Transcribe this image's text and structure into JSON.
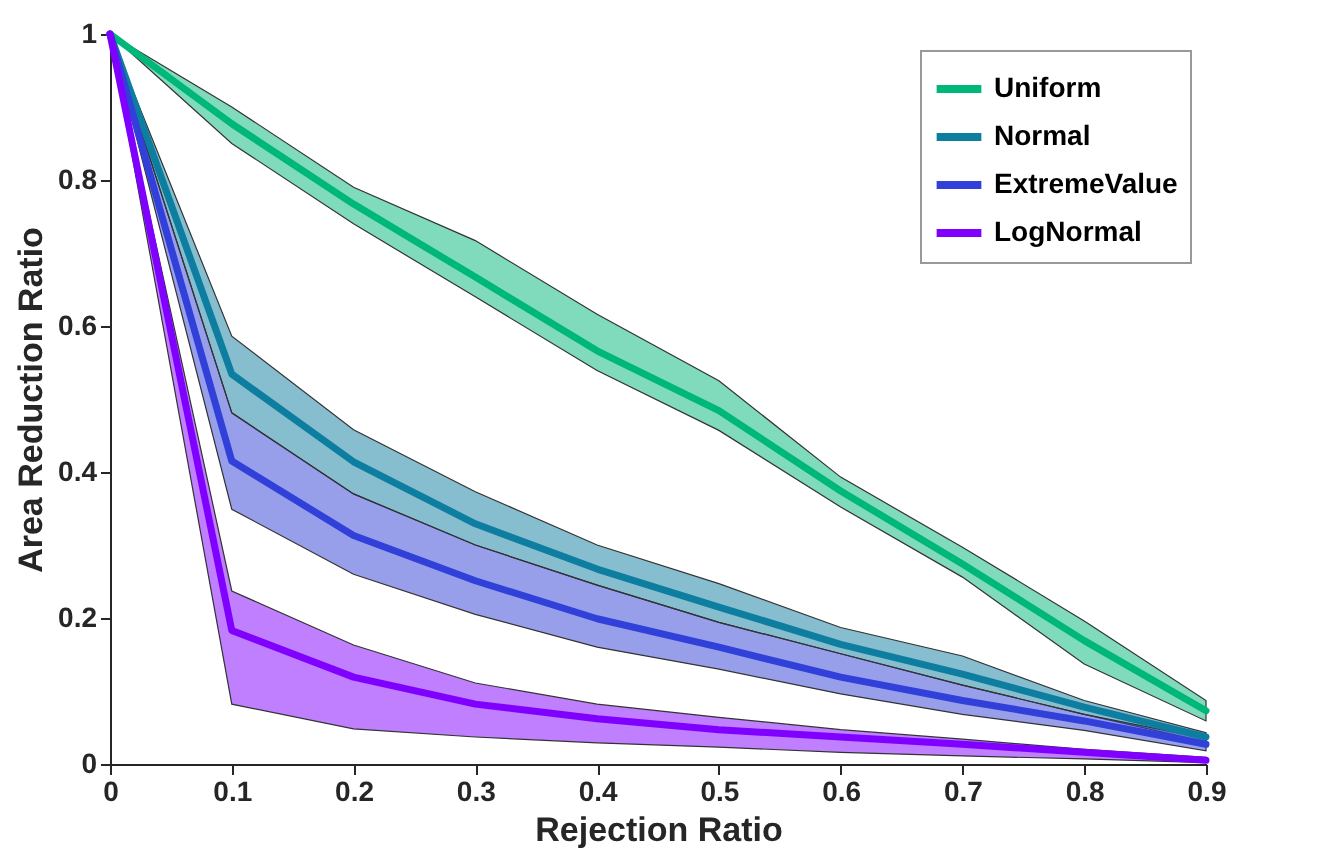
{
  "chart_data": {
    "type": "line",
    "xlabel": "Rejection Ratio",
    "ylabel": "Area Reduction Ratio",
    "x": [
      0,
      0.1,
      0.2,
      0.3,
      0.4,
      0.5,
      0.6,
      0.7,
      0.8,
      0.9
    ],
    "xlim": [
      0,
      0.9
    ],
    "xticks": [
      0,
      0.1,
      0.2,
      0.3,
      0.4,
      0.5,
      0.6,
      0.7,
      0.8,
      0.9
    ],
    "ylim": [
      0,
      1
    ],
    "yticks": [
      0,
      0.2,
      0.4,
      0.6,
      0.8,
      1
    ],
    "grid": false,
    "legend": "top right",
    "line_style": "solid",
    "marker": "none",
    "series": [
      {
        "name": "Uniform",
        "color": "#00b77a",
        "values": [
          1,
          0.877,
          0.767,
          0.667,
          0.566,
          0.484,
          0.374,
          0.274,
          0.169,
          0.073
        ],
        "lower": [
          1,
          0.85,
          0.74,
          0.64,
          0.539,
          0.457,
          0.352,
          0.256,
          0.137,
          0.059
        ],
        "upper": [
          1,
          0.9,
          0.79,
          0.717,
          0.616,
          0.525,
          0.393,
          0.297,
          0.196,
          0.087
        ]
      },
      {
        "name": "Normal",
        "color": "#0e7ea0",
        "values": [
          1,
          0.534,
          0.414,
          0.329,
          0.267,
          0.215,
          0.164,
          0.123,
          0.078,
          0.037
        ],
        "lower": [
          1,
          0.481,
          0.37,
          0.3,
          0.245,
          0.194,
          0.151,
          0.108,
          0.068,
          0.03
        ],
        "upper": [
          1,
          0.586,
          0.458,
          0.373,
          0.3,
          0.247,
          0.187,
          0.148,
          0.087,
          0.043
        ]
      },
      {
        "name": "ExtremeValue",
        "color": "#3040d8",
        "values": [
          1,
          0.415,
          0.313,
          0.251,
          0.199,
          0.16,
          0.119,
          0.087,
          0.059,
          0.027
        ],
        "lower": [
          1,
          0.349,
          0.26,
          0.205,
          0.16,
          0.13,
          0.096,
          0.068,
          0.046,
          0.018
        ],
        "upper": [
          1,
          0.481,
          0.37,
          0.3,
          0.245,
          0.194,
          0.151,
          0.108,
          0.068,
          0.035
        ]
      },
      {
        "name": "LogNormal",
        "color": "#7f00ff",
        "values": [
          1,
          0.183,
          0.119,
          0.082,
          0.062,
          0.047,
          0.037,
          0.027,
          0.016,
          0.005
        ],
        "lower": [
          1,
          0.082,
          0.048,
          0.037,
          0.029,
          0.023,
          0.016,
          0.011,
          0.007,
          0.002
        ],
        "upper": [
          1,
          0.237,
          0.163,
          0.111,
          0.082,
          0.064,
          0.047,
          0.034,
          0.02,
          0.009
        ]
      }
    ]
  }
}
